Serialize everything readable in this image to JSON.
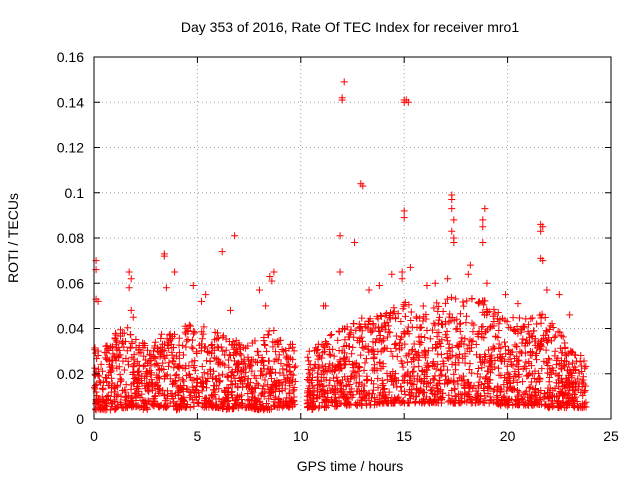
{
  "chart_data": {
    "type": "scatter",
    "title": "Day 353 of 2016, Rate Of TEC Index for receiver mro1",
    "xlabel": "GPS time / hours",
    "ylabel": "ROTI / TECUs",
    "xlim": [
      0,
      25
    ],
    "ylim": [
      0,
      0.16
    ],
    "xticks": [
      0,
      5,
      10,
      15,
      20,
      25
    ],
    "yticks": [
      0,
      0.02,
      0.04,
      0.06,
      0.08,
      0.1,
      0.12,
      0.14,
      0.16
    ],
    "xtick_labels": [
      "0",
      "5",
      "10",
      "15",
      "20",
      "25"
    ],
    "ytick_labels": [
      "0",
      "0.02",
      "0.04",
      "0.06",
      "0.08",
      "0.1",
      "0.12",
      "0.14",
      "0.16"
    ],
    "grid": true,
    "marker": "+",
    "series": [
      {
        "name": "ROTI",
        "color": "#ff0000",
        "points": [
          [
            0.1,
            0.07
          ],
          [
            0.1,
            0.066
          ],
          [
            0.1,
            0.053
          ],
          [
            0.2,
            0.052
          ],
          [
            0.2,
            0.03
          ],
          [
            1.7,
            0.065
          ],
          [
            1.8,
            0.062
          ],
          [
            1.7,
            0.058
          ],
          [
            1.8,
            0.048
          ],
          [
            1.9,
            0.045
          ],
          [
            3.4,
            0.073
          ],
          [
            3.4,
            0.072
          ],
          [
            3.5,
            0.058
          ],
          [
            3.9,
            0.065
          ],
          [
            4.8,
            0.059
          ],
          [
            5.2,
            0.052
          ],
          [
            5.4,
            0.055
          ],
          [
            6.2,
            0.074
          ],
          [
            6.8,
            0.081
          ],
          [
            6.6,
            0.048
          ],
          [
            8.0,
            0.057
          ],
          [
            8.5,
            0.063
          ],
          [
            8.6,
            0.061
          ],
          [
            8.7,
            0.065
          ],
          [
            8.3,
            0.05
          ],
          [
            11.1,
            0.05
          ],
          [
            11.2,
            0.05
          ],
          [
            11.9,
            0.065
          ],
          [
            11.9,
            0.081
          ],
          [
            12.0,
            0.141
          ],
          [
            12.0,
            0.142
          ],
          [
            12.1,
            0.149
          ],
          [
            12.6,
            0.078
          ],
          [
            12.9,
            0.104
          ],
          [
            13.0,
            0.103
          ],
          [
            13.3,
            0.057
          ],
          [
            13.8,
            0.059
          ],
          [
            14.4,
            0.064
          ],
          [
            14.9,
            0.065
          ],
          [
            14.9,
            0.062
          ],
          [
            15.0,
            0.092
          ],
          [
            15.0,
            0.089
          ],
          [
            15.0,
            0.14
          ],
          [
            15.0,
            0.141
          ],
          [
            15.1,
            0.141
          ],
          [
            15.2,
            0.14
          ],
          [
            15.3,
            0.067
          ],
          [
            16.1,
            0.059
          ],
          [
            16.5,
            0.06
          ],
          [
            17.1,
            0.062
          ],
          [
            17.3,
            0.099
          ],
          [
            17.3,
            0.097
          ],
          [
            17.3,
            0.093
          ],
          [
            17.4,
            0.088
          ],
          [
            17.3,
            0.083
          ],
          [
            17.4,
            0.08
          ],
          [
            17.4,
            0.078
          ],
          [
            18.2,
            0.068
          ],
          [
            18.1,
            0.064
          ],
          [
            18.8,
            0.085
          ],
          [
            18.8,
            0.088
          ],
          [
            18.9,
            0.093
          ],
          [
            18.8,
            0.078
          ],
          [
            19.0,
            0.06
          ],
          [
            19.9,
            0.055
          ],
          [
            20.5,
            0.051
          ],
          [
            21.6,
            0.086
          ],
          [
            21.7,
            0.085
          ],
          [
            21.6,
            0.083
          ],
          [
            21.6,
            0.071
          ],
          [
            21.7,
            0.07
          ],
          [
            21.9,
            0.057
          ],
          [
            22.5,
            0.055
          ],
          [
            23.0,
            0.046
          ]
        ],
        "bulk_envelope": {
          "description": "dense band of points between the upper and lower ROTI values, gap from ~9.7h to ~10.3h",
          "x": [
            0,
            0.5,
            1,
            1.5,
            2,
            2.5,
            3,
            3.5,
            4,
            4.5,
            5,
            5.5,
            6,
            6.5,
            7,
            7.5,
            8,
            8.5,
            9,
            9.5,
            9.7,
            10.3,
            10.5,
            11,
            11.5,
            12,
            12.5,
            13,
            13.5,
            14,
            14.5,
            15,
            15.5,
            16,
            16.5,
            17,
            17.5,
            18,
            18.5,
            19,
            19.5,
            20,
            20.5,
            21,
            21.5,
            22,
            22.5,
            23,
            23.5,
            23.8
          ],
          "upper": [
            0.035,
            0.032,
            0.038,
            0.042,
            0.036,
            0.034,
            0.035,
            0.04,
            0.038,
            0.042,
            0.04,
            0.042,
            0.038,
            0.036,
            0.035,
            0.034,
            0.037,
            0.04,
            0.038,
            0.036,
            0.032,
            0.03,
            0.032,
            0.035,
            0.038,
            0.04,
            0.042,
            0.045,
            0.046,
            0.048,
            0.05,
            0.052,
            0.05,
            0.05,
            0.052,
            0.055,
            0.055,
            0.055,
            0.054,
            0.052,
            0.048,
            0.046,
            0.045,
            0.044,
            0.046,
            0.048,
            0.04,
            0.032,
            0.03,
            0.025
          ],
          "lower": [
            0.004,
            0.004,
            0.004,
            0.005,
            0.005,
            0.004,
            0.005,
            0.005,
            0.004,
            0.005,
            0.005,
            0.005,
            0.005,
            0.004,
            0.005,
            0.005,
            0.004,
            0.004,
            0.005,
            0.005,
            0.006,
            0.005,
            0.004,
            0.005,
            0.005,
            0.006,
            0.006,
            0.006,
            0.006,
            0.007,
            0.007,
            0.007,
            0.007,
            0.007,
            0.007,
            0.007,
            0.007,
            0.007,
            0.007,
            0.007,
            0.006,
            0.006,
            0.006,
            0.006,
            0.006,
            0.005,
            0.005,
            0.005,
            0.005,
            0.005
          ]
        }
      }
    ]
  }
}
